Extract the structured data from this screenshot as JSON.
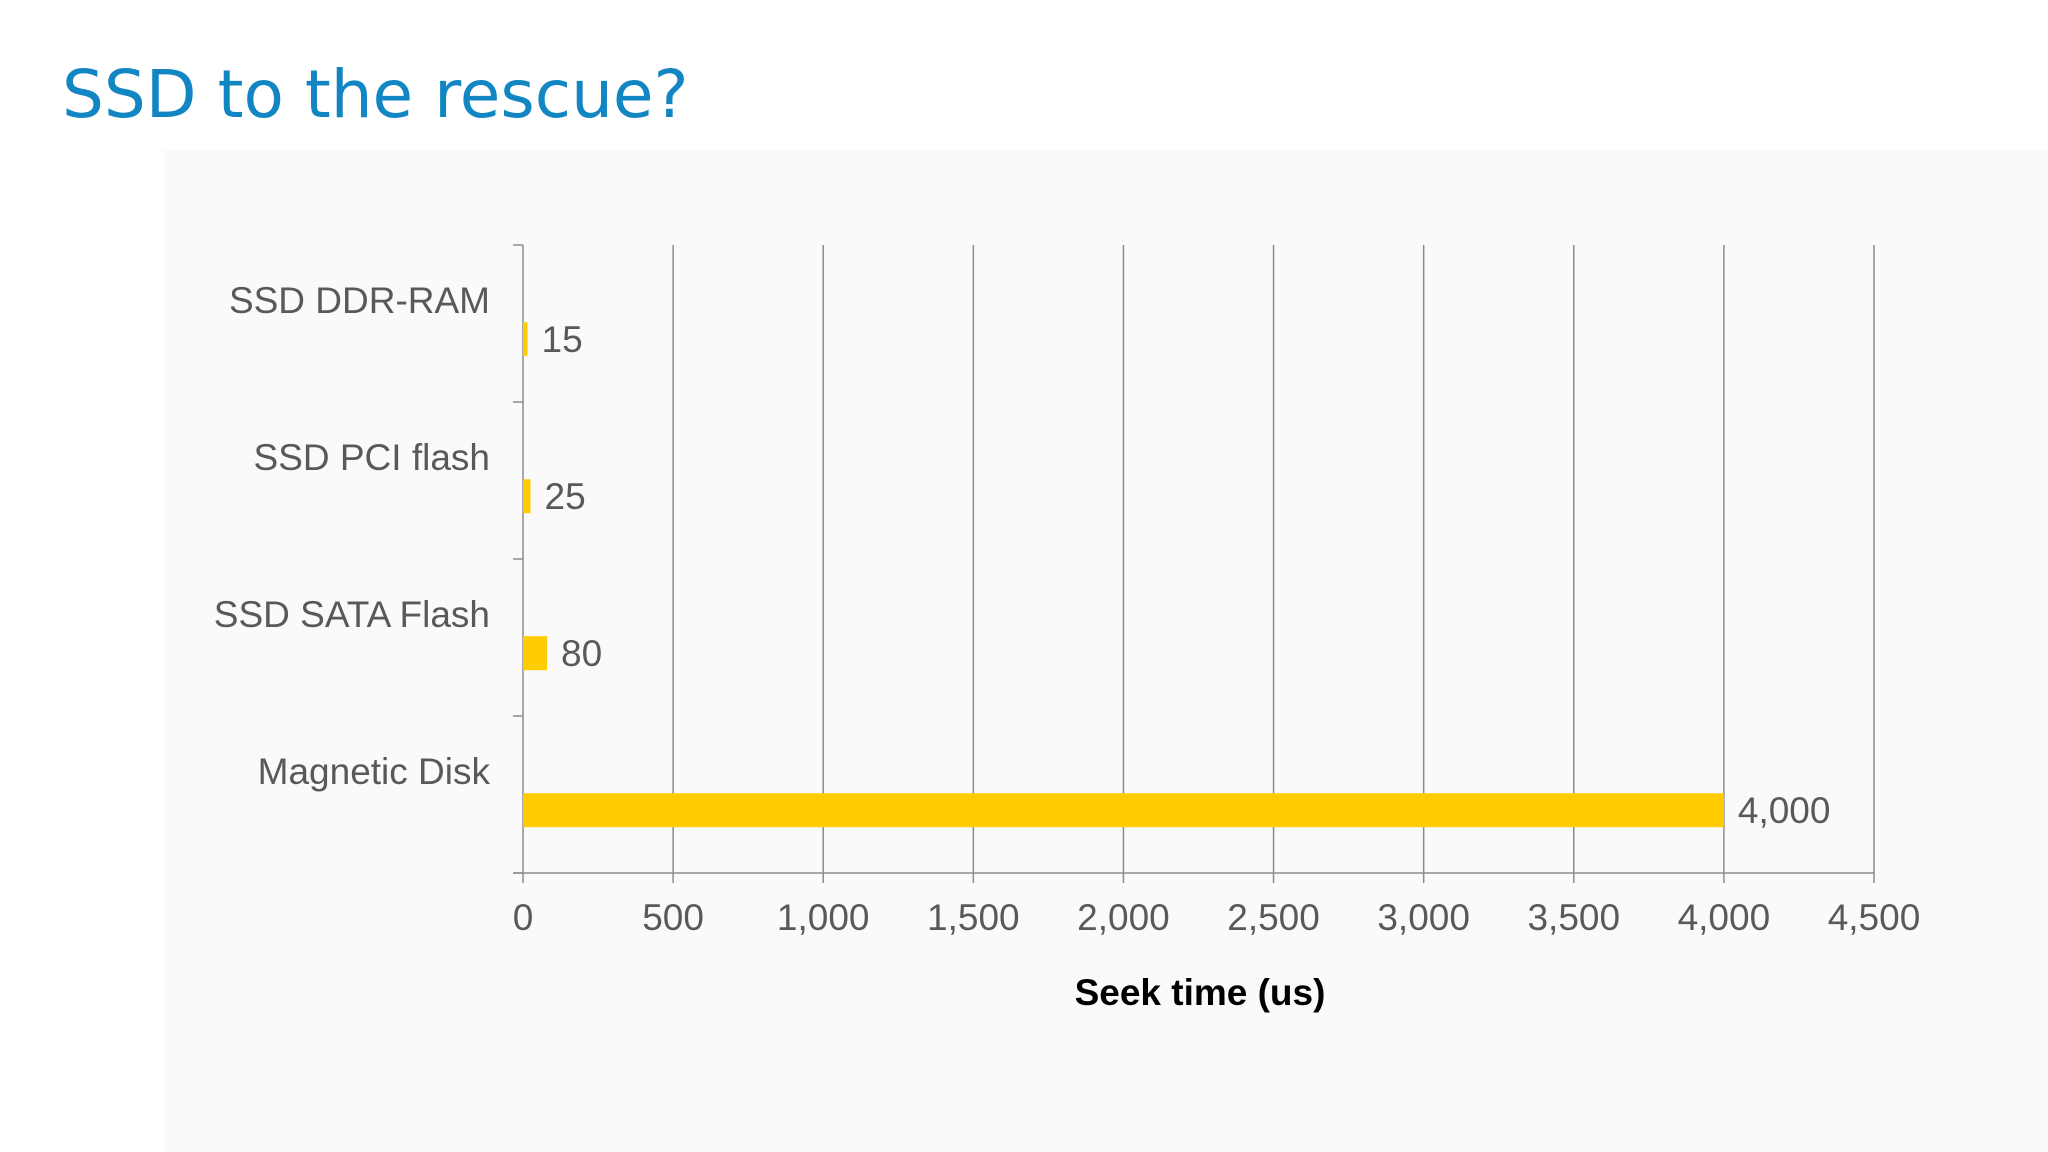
{
  "slide": {
    "title": "SSD to the rescue?",
    "title_color": "#1186c3"
  },
  "chart_data": {
    "type": "bar",
    "orientation": "horizontal",
    "categories": [
      "SSD DDR-RAM",
      "SSD PCI flash",
      "SSD SATA Flash",
      "Magnetic Disk"
    ],
    "values": [
      15,
      25,
      80,
      4000
    ],
    "data_labels": [
      "15",
      "25",
      "80",
      "4,000"
    ],
    "xlabel": "Seek time (us)",
    "ylabel": "",
    "xlim": [
      0,
      4500
    ],
    "xticks": [
      0,
      500,
      1000,
      1500,
      2000,
      2500,
      3000,
      3500,
      4000,
      4500
    ],
    "xtick_labels": [
      "0",
      "500",
      "1,000",
      "1,500",
      "2,000",
      "2,500",
      "3,000",
      "3,500",
      "4,000",
      "4,500"
    ],
    "grid": "vertical",
    "legend": "none",
    "bar_color": "#ffcc00",
    "grid_color": "#8c8c8c"
  }
}
